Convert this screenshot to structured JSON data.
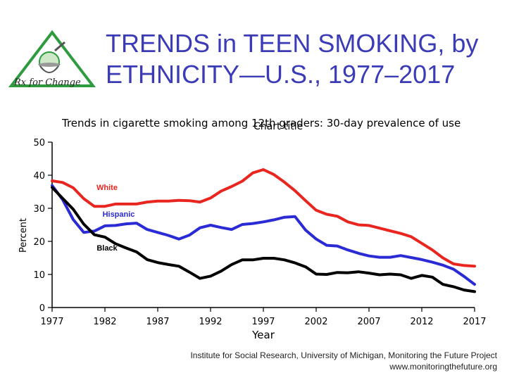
{
  "header": {
    "title_line1": "TRENDS in TEEN SMOKING, by",
    "title_line2": "ETHNICITY—U.S., 1977–2017",
    "logo_text": "Rx for Change"
  },
  "chart_data": {
    "type": "line",
    "subtitle": "Trends in cigarette smoking among 12th graders: 30-day prevalence of use",
    "overlay_text": "Chart title",
    "xlabel": "Year",
    "ylabel": "Percent",
    "xlim": [
      1977,
      2017
    ],
    "ylim": [
      0,
      50
    ],
    "yticks": [
      0,
      10,
      20,
      30,
      40,
      50
    ],
    "xticks": [
      1977,
      1982,
      1987,
      1992,
      1997,
      2002,
      2007,
      2012,
      2017
    ],
    "x": [
      1977,
      1978,
      1979,
      1980,
      1981,
      1982,
      1983,
      1984,
      1985,
      1986,
      1987,
      1988,
      1989,
      1990,
      1991,
      1992,
      1993,
      1994,
      1995,
      1996,
      1997,
      1998,
      1999,
      2000,
      2001,
      2002,
      2003,
      2004,
      2005,
      2006,
      2007,
      2008,
      2009,
      2010,
      2011,
      2012,
      2013,
      2014,
      2015,
      2016,
      2017
    ],
    "series": [
      {
        "name": "White",
        "color": "#e8251f",
        "values": [
          38.3,
          37.8,
          36.2,
          32.9,
          30.6,
          30.6,
          31.3,
          31.3,
          31.3,
          31.9,
          32.2,
          32.2,
          32.4,
          32.3,
          31.9,
          33.1,
          35.2,
          36.6,
          38.2,
          40.7,
          41.7,
          40.2,
          37.9,
          35.3,
          32.3,
          29.4,
          28.2,
          27.6,
          25.9,
          25.0,
          24.8,
          24.0,
          23.2,
          22.4,
          21.4,
          19.4,
          17.4,
          15.0,
          13.2,
          12.7,
          12.5
        ]
      },
      {
        "name": "Hispanic",
        "color": "#2b2bd6",
        "values": [
          36.9,
          32.6,
          26.6,
          22.7,
          23.1,
          24.7,
          24.8,
          25.3,
          25.5,
          23.6,
          22.7,
          21.8,
          20.7,
          21.9,
          24.1,
          24.9,
          24.2,
          23.6,
          25.1,
          25.4,
          25.9,
          26.5,
          27.3,
          27.5,
          23.4,
          20.7,
          18.8,
          18.6,
          17.4,
          16.4,
          15.6,
          15.2,
          15.2,
          15.7,
          15.1,
          14.5,
          13.7,
          12.8,
          11.6,
          9.4,
          7.0
        ]
      },
      {
        "name": "Black",
        "color": "#000000",
        "values": [
          36.3,
          33.0,
          29.7,
          25.2,
          22.0,
          21.3,
          19.3,
          18.0,
          16.8,
          14.5,
          13.6,
          13.0,
          12.5,
          10.7,
          8.8,
          9.5,
          11.0,
          13.0,
          14.4,
          14.4,
          14.9,
          14.9,
          14.4,
          13.5,
          12.3,
          10.1,
          10.0,
          10.6,
          10.5,
          10.8,
          10.4,
          9.9,
          10.1,
          9.9,
          8.8,
          9.7,
          9.2,
          7.0,
          6.3,
          5.3,
          4.8
        ]
      }
    ],
    "grid": false,
    "legend": "inline-labels"
  },
  "footer": {
    "source_line1": "Institute for Social Research, University of Michigan, Monitoring the Future Project",
    "source_line2": "www.monitoringthefuture.org"
  }
}
